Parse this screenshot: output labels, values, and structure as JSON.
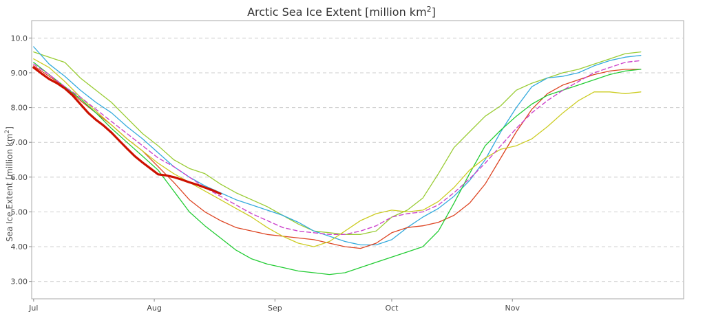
{
  "chart_data": {
    "type": "line",
    "title_main": "Arctic Sea Ice Extent [million km",
    "title_sup": "2",
    "title_end": "]",
    "ylabel_main": "Sea Ice Extent [million km",
    "ylabel_sup": "2",
    "ylabel_end": "]",
    "xlabel": "",
    "x_unit": "day-of-year",
    "xlim": [
      181.5,
      349
    ],
    "ylim": [
      2.5,
      10.5
    ],
    "yticks": [
      3.0,
      4.0,
      5.0,
      6.0,
      7.0,
      8.0,
      9.0,
      10.0
    ],
    "ytick_labels": [
      "3.00",
      "4.00",
      "5.00",
      "6.00",
      "7.00",
      "8.00",
      "9.00",
      "10.0"
    ],
    "xticks": [
      {
        "label": "Jul",
        "value": 182
      },
      {
        "label": "Aug",
        "value": 213
      },
      {
        "label": "Sep",
        "value": 244
      },
      {
        "label": "Oct",
        "value": 274
      },
      {
        "label": "Nov",
        "value": 305
      }
    ],
    "grid": "horizontal-dashed",
    "series": [
      {
        "color": "#99cc33",
        "width": 1.3,
        "dash": false,
        "points": [
          [
            182,
            9.6
          ],
          [
            186,
            9.45
          ],
          [
            190,
            9.3
          ],
          [
            194,
            8.85
          ],
          [
            198,
            8.5
          ],
          [
            202,
            8.15
          ],
          [
            206,
            7.7
          ],
          [
            210,
            7.25
          ],
          [
            214,
            6.9
          ],
          [
            218,
            6.5
          ],
          [
            222,
            6.25
          ],
          [
            226,
            6.1
          ],
          [
            230,
            5.8
          ],
          [
            234,
            5.55
          ],
          [
            238,
            5.35
          ],
          [
            242,
            5.15
          ],
          [
            246,
            4.9
          ],
          [
            250,
            4.65
          ],
          [
            254,
            4.45
          ],
          [
            258,
            4.4
          ],
          [
            262,
            4.35
          ],
          [
            266,
            4.35
          ],
          [
            270,
            4.45
          ],
          [
            274,
            4.85
          ],
          [
            278,
            5.05
          ],
          [
            282,
            5.4
          ],
          [
            286,
            6.1
          ],
          [
            290,
            6.85
          ],
          [
            294,
            7.3
          ],
          [
            298,
            7.75
          ],
          [
            302,
            8.05
          ],
          [
            306,
            8.5
          ],
          [
            310,
            8.7
          ],
          [
            314,
            8.85
          ],
          [
            318,
            9.0
          ],
          [
            322,
            9.1
          ],
          [
            326,
            9.25
          ],
          [
            330,
            9.4
          ],
          [
            334,
            9.55
          ],
          [
            338,
            9.6
          ]
        ]
      },
      {
        "color": "#33aadd",
        "width": 1.3,
        "dash": false,
        "points": [
          [
            182,
            9.75
          ],
          [
            186,
            9.25
          ],
          [
            190,
            8.9
          ],
          [
            194,
            8.5
          ],
          [
            198,
            8.15
          ],
          [
            202,
            7.85
          ],
          [
            206,
            7.45
          ],
          [
            210,
            7.1
          ],
          [
            214,
            6.7
          ],
          [
            218,
            6.3
          ],
          [
            222,
            6.0
          ],
          [
            226,
            5.75
          ],
          [
            230,
            5.55
          ],
          [
            234,
            5.35
          ],
          [
            238,
            5.2
          ],
          [
            242,
            5.05
          ],
          [
            246,
            4.9
          ],
          [
            250,
            4.7
          ],
          [
            254,
            4.45
          ],
          [
            258,
            4.3
          ],
          [
            262,
            4.15
          ],
          [
            266,
            4.05
          ],
          [
            270,
            4.05
          ],
          [
            274,
            4.2
          ],
          [
            278,
            4.55
          ],
          [
            282,
            4.85
          ],
          [
            286,
            5.1
          ],
          [
            290,
            5.45
          ],
          [
            294,
            5.9
          ],
          [
            298,
            6.5
          ],
          [
            302,
            7.3
          ],
          [
            306,
            8.0
          ],
          [
            310,
            8.6
          ],
          [
            314,
            8.85
          ],
          [
            318,
            8.9
          ],
          [
            322,
            9.0
          ],
          [
            326,
            9.2
          ],
          [
            330,
            9.35
          ],
          [
            334,
            9.45
          ],
          [
            338,
            9.5
          ]
        ]
      },
      {
        "color": "#dd4422",
        "width": 1.3,
        "dash": false,
        "points": [
          [
            182,
            9.2
          ],
          [
            186,
            8.9
          ],
          [
            190,
            8.6
          ],
          [
            194,
            8.2
          ],
          [
            198,
            7.85
          ],
          [
            202,
            7.5
          ],
          [
            206,
            7.1
          ],
          [
            210,
            6.75
          ],
          [
            214,
            6.3
          ],
          [
            218,
            5.85
          ],
          [
            222,
            5.35
          ],
          [
            226,
            5.0
          ],
          [
            230,
            4.75
          ],
          [
            234,
            4.55
          ],
          [
            238,
            4.45
          ],
          [
            242,
            4.35
          ],
          [
            246,
            4.3
          ],
          [
            250,
            4.25
          ],
          [
            254,
            4.2
          ],
          [
            258,
            4.1
          ],
          [
            262,
            4.0
          ],
          [
            266,
            3.95
          ],
          [
            270,
            4.1
          ],
          [
            274,
            4.4
          ],
          [
            278,
            4.55
          ],
          [
            282,
            4.6
          ],
          [
            286,
            4.7
          ],
          [
            290,
            4.9
          ],
          [
            294,
            5.25
          ],
          [
            298,
            5.8
          ],
          [
            302,
            6.55
          ],
          [
            306,
            7.3
          ],
          [
            310,
            7.95
          ],
          [
            314,
            8.4
          ],
          [
            318,
            8.65
          ],
          [
            322,
            8.8
          ],
          [
            326,
            8.95
          ],
          [
            330,
            9.05
          ],
          [
            334,
            9.1
          ],
          [
            338,
            9.1
          ]
        ]
      },
      {
        "color": "#22cc33",
        "width": 1.3,
        "dash": false,
        "points": [
          [
            182,
            9.3
          ],
          [
            186,
            8.95
          ],
          [
            190,
            8.6
          ],
          [
            194,
            8.25
          ],
          [
            198,
            7.85
          ],
          [
            202,
            7.4
          ],
          [
            206,
            7.0
          ],
          [
            210,
            6.6
          ],
          [
            214,
            6.2
          ],
          [
            218,
            5.6
          ],
          [
            222,
            5.0
          ],
          [
            226,
            4.6
          ],
          [
            230,
            4.25
          ],
          [
            234,
            3.9
          ],
          [
            238,
            3.65
          ],
          [
            242,
            3.5
          ],
          [
            246,
            3.4
          ],
          [
            250,
            3.3
          ],
          [
            254,
            3.25
          ],
          [
            258,
            3.2
          ],
          [
            262,
            3.25
          ],
          [
            266,
            3.4
          ],
          [
            270,
            3.55
          ],
          [
            274,
            3.7
          ],
          [
            278,
            3.85
          ],
          [
            282,
            4.0
          ],
          [
            286,
            4.45
          ],
          [
            290,
            5.25
          ],
          [
            294,
            6.1
          ],
          [
            298,
            6.9
          ],
          [
            302,
            7.35
          ],
          [
            306,
            7.75
          ],
          [
            310,
            8.1
          ],
          [
            314,
            8.35
          ],
          [
            318,
            8.5
          ],
          [
            322,
            8.65
          ],
          [
            326,
            8.8
          ],
          [
            330,
            8.95
          ],
          [
            334,
            9.05
          ],
          [
            338,
            9.1
          ]
        ]
      },
      {
        "color": "#cccc22",
        "width": 1.3,
        "dash": false,
        "points": [
          [
            182,
            9.4
          ],
          [
            186,
            9.15
          ],
          [
            190,
            8.75
          ],
          [
            194,
            8.3
          ],
          [
            198,
            7.9
          ],
          [
            202,
            7.5
          ],
          [
            206,
            7.1
          ],
          [
            210,
            6.75
          ],
          [
            214,
            6.4
          ],
          [
            218,
            6.1
          ],
          [
            222,
            5.85
          ],
          [
            226,
            5.6
          ],
          [
            230,
            5.35
          ],
          [
            234,
            5.1
          ],
          [
            238,
            4.85
          ],
          [
            242,
            4.55
          ],
          [
            246,
            4.3
          ],
          [
            250,
            4.1
          ],
          [
            254,
            4.0
          ],
          [
            258,
            4.15
          ],
          [
            262,
            4.45
          ],
          [
            266,
            4.75
          ],
          [
            270,
            4.95
          ],
          [
            274,
            5.05
          ],
          [
            278,
            5.0
          ],
          [
            282,
            5.05
          ],
          [
            286,
            5.3
          ],
          [
            290,
            5.7
          ],
          [
            294,
            6.2
          ],
          [
            298,
            6.55
          ],
          [
            302,
            6.8
          ],
          [
            306,
            6.9
          ],
          [
            310,
            7.1
          ],
          [
            314,
            7.45
          ],
          [
            318,
            7.85
          ],
          [
            322,
            8.2
          ],
          [
            326,
            8.45
          ],
          [
            330,
            8.45
          ],
          [
            334,
            8.4
          ],
          [
            338,
            8.45
          ]
        ]
      },
      {
        "color": "#cc44cc",
        "width": 1.4,
        "dash": true,
        "points": [
          [
            182,
            9.25
          ],
          [
            186,
            8.95
          ],
          [
            190,
            8.6
          ],
          [
            194,
            8.3
          ],
          [
            198,
            7.95
          ],
          [
            202,
            7.6
          ],
          [
            206,
            7.25
          ],
          [
            210,
            6.9
          ],
          [
            214,
            6.55
          ],
          [
            218,
            6.3
          ],
          [
            222,
            6.0
          ],
          [
            226,
            5.7
          ],
          [
            230,
            5.45
          ],
          [
            234,
            5.2
          ],
          [
            238,
            4.95
          ],
          [
            242,
            4.75
          ],
          [
            246,
            4.55
          ],
          [
            250,
            4.45
          ],
          [
            254,
            4.4
          ],
          [
            258,
            4.35
          ],
          [
            262,
            4.35
          ],
          [
            266,
            4.45
          ],
          [
            270,
            4.6
          ],
          [
            274,
            4.85
          ],
          [
            278,
            4.95
          ],
          [
            282,
            5.0
          ],
          [
            286,
            5.2
          ],
          [
            290,
            5.55
          ],
          [
            294,
            5.95
          ],
          [
            298,
            6.4
          ],
          [
            302,
            6.9
          ],
          [
            306,
            7.4
          ],
          [
            310,
            7.85
          ],
          [
            314,
            8.2
          ],
          [
            318,
            8.5
          ],
          [
            322,
            8.75
          ],
          [
            326,
            9.0
          ],
          [
            330,
            9.15
          ],
          [
            334,
            9.3
          ],
          [
            338,
            9.35
          ]
        ]
      },
      {
        "color": "#cc1100",
        "width": 3.2,
        "dash": false,
        "points": [
          [
            182,
            9.15
          ],
          [
            184,
            8.98
          ],
          [
            186,
            8.82
          ],
          [
            188,
            8.7
          ],
          [
            190,
            8.55
          ],
          [
            192,
            8.35
          ],
          [
            194,
            8.1
          ],
          [
            196,
            7.85
          ],
          [
            198,
            7.65
          ],
          [
            200,
            7.48
          ],
          [
            202,
            7.28
          ],
          [
            204,
            7.05
          ],
          [
            206,
            6.82
          ],
          [
            208,
            6.6
          ],
          [
            210,
            6.42
          ],
          [
            212,
            6.25
          ],
          [
            214,
            6.08
          ],
          [
            216,
            6.05
          ],
          [
            218,
            6.0
          ],
          [
            220,
            5.93
          ],
          [
            222,
            5.85
          ],
          [
            224,
            5.78
          ],
          [
            226,
            5.7
          ],
          [
            228,
            5.62
          ],
          [
            230,
            5.52
          ]
        ]
      }
    ]
  }
}
